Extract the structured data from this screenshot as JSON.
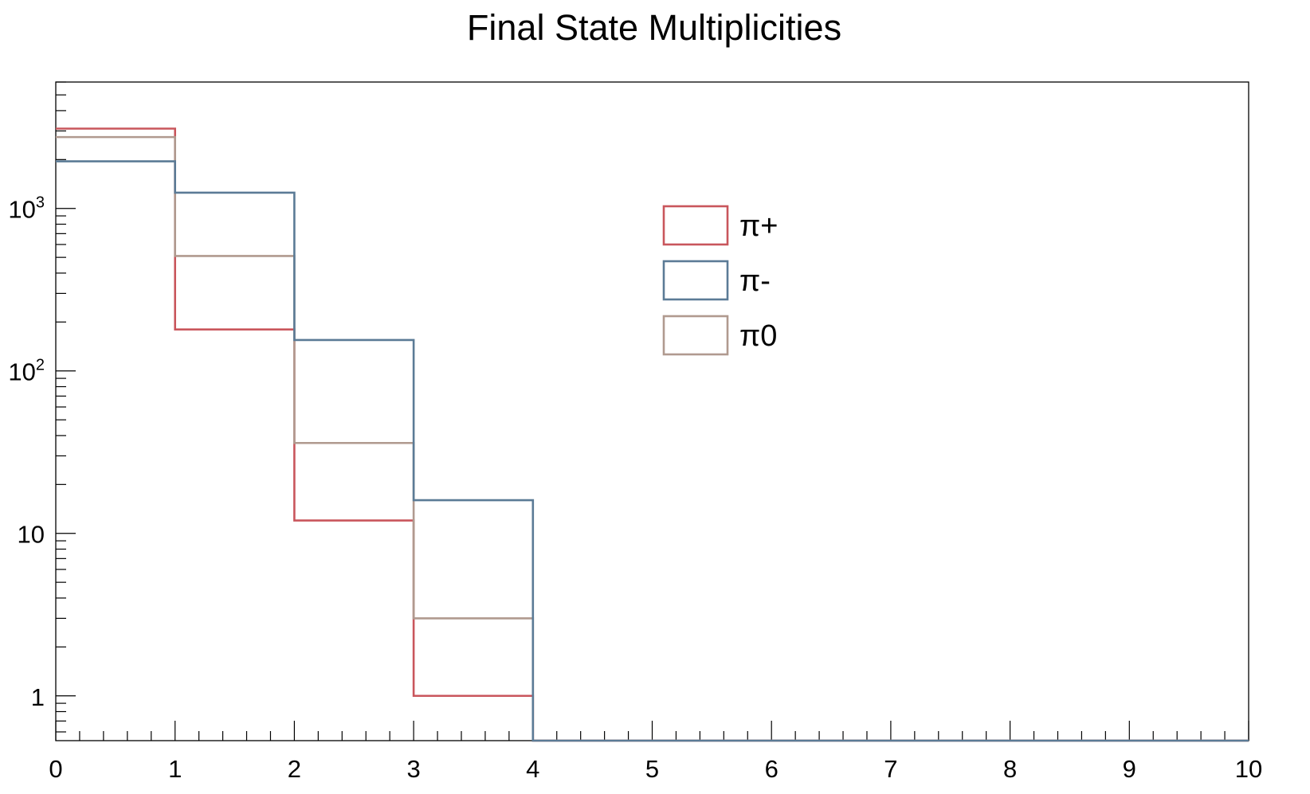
{
  "chart_data": {
    "type": "histogram",
    "title": "Final State Multiplicities",
    "xlabel": "",
    "ylabel": "",
    "xlim": [
      0,
      10
    ],
    "ylim": [
      0.53,
      6000
    ],
    "yscale": "log",
    "grid": false,
    "legend_position": "top-center",
    "x_ticks": [
      "0",
      "1",
      "2",
      "3",
      "4",
      "5",
      "6",
      "7",
      "8",
      "9",
      "10"
    ],
    "y_ticks": [
      {
        "value": 1,
        "base": "1",
        "exp": ""
      },
      {
        "value": 10,
        "base": "10",
        "exp": ""
      },
      {
        "value": 100,
        "base": "10",
        "exp": "2"
      },
      {
        "value": 1000,
        "base": "10",
        "exp": "3"
      }
    ],
    "bin_edges": [
      0,
      1,
      2,
      3,
      4,
      5,
      6,
      7,
      8,
      9,
      10
    ],
    "series": [
      {
        "name": "π+",
        "color": "#c9565c",
        "values": [
          3100,
          180,
          12,
          1,
          0,
          0,
          0,
          0,
          0,
          0
        ]
      },
      {
        "name": "π0",
        "color": "#b09a8f",
        "values": [
          2750,
          510,
          36,
          3,
          0,
          0,
          0,
          0,
          0,
          0
        ]
      },
      {
        "name": "π-",
        "color": "#5b7b96",
        "values": [
          1950,
          1250,
          155,
          16,
          0,
          0,
          0,
          0,
          0,
          0
        ]
      }
    ],
    "legend_order": [
      "π+",
      "π-",
      "π0"
    ]
  }
}
